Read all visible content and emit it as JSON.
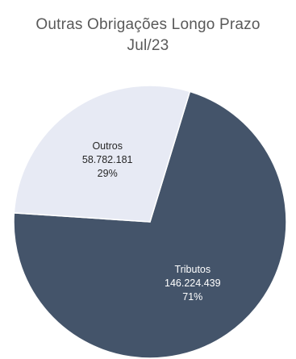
{
  "chart_data": {
    "type": "pie",
    "title": "Outras Obrigações Longo Prazo",
    "subtitle": "Jul/23",
    "slices": [
      {
        "name": "Tributos",
        "value": 146224439,
        "value_label": "146.224.439",
        "percent_label": "71%",
        "color": "#44546a",
        "label_color": "#ffffff"
      },
      {
        "name": "Outros",
        "value": 58782181,
        "value_label": "58.782.181",
        "percent_label": "29%",
        "color": "#e7eaf4",
        "label_color": "#262626"
      }
    ]
  }
}
